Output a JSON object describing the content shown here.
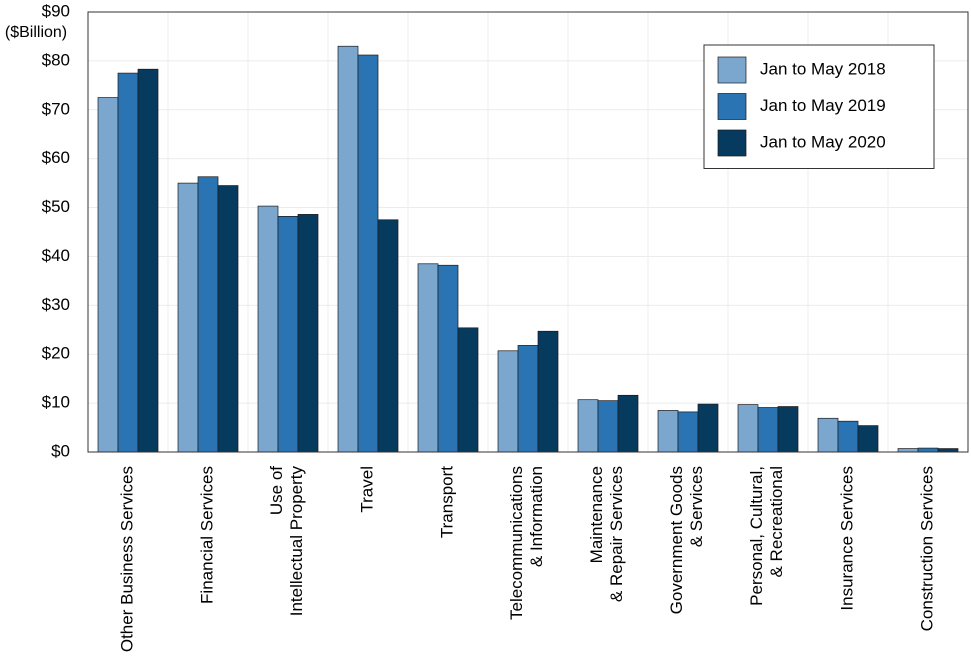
{
  "chart_data": {
    "type": "bar",
    "y_label": "($Billion)",
    "categories": [
      "Other Business Services",
      "Financial Services",
      "Use of\nIntellectual Property",
      "Travel",
      "Transport",
      "Telecommunications\n& Information",
      "Maintenance\n& Repair Services",
      "Government Goods\n& Services",
      "Personal, Cultural,\n& Recreational",
      "Insurance Services",
      "Construction Services"
    ],
    "series": [
      {
        "name": "Jan to May 2018",
        "color": "#7ba7cf",
        "values": [
          72.5,
          55,
          50.3,
          83,
          38.5,
          20.7,
          10.7,
          8.5,
          9.7,
          6.9,
          0.7
        ]
      },
      {
        "name": "Jan to May 2019",
        "color": "#2b74b3",
        "values": [
          77.5,
          56.3,
          48.2,
          81.2,
          38.2,
          21.8,
          10.5,
          8.2,
          9.1,
          6.3,
          0.8
        ]
      },
      {
        "name": "Jan to May 2020",
        "color": "#063a5e",
        "values": [
          78.3,
          54.5,
          48.6,
          47.5,
          25.4,
          24.7,
          11.6,
          9.8,
          9.3,
          5.4,
          0.7
        ]
      }
    ],
    "ylim": [
      0,
      90
    ],
    "yticks": [
      {
        "value": 0,
        "label": "$0"
      },
      {
        "value": 10,
        "label": "$10"
      },
      {
        "value": 20,
        "label": "$20"
      },
      {
        "value": 30,
        "label": "$30"
      },
      {
        "value": 40,
        "label": "$40"
      },
      {
        "value": 50,
        "label": "$50"
      },
      {
        "value": 60,
        "label": "$60"
      },
      {
        "value": 70,
        "label": "$70"
      },
      {
        "value": 80,
        "label": "$80"
      },
      {
        "value": 90,
        "label": "$90"
      }
    ],
    "grid": true,
    "legend": "top-right"
  }
}
